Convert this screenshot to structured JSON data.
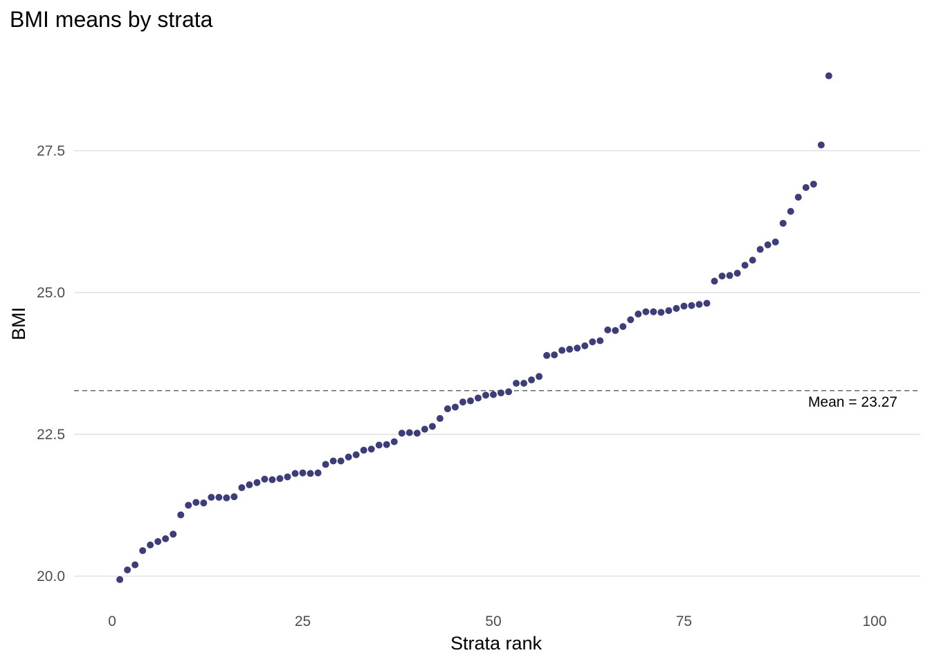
{
  "chart_data": {
    "type": "scatter",
    "title": "BMI means by strata",
    "xlabel": "Strata rank",
    "ylabel": "BMI",
    "xlim": [
      -5,
      106
    ],
    "ylim": [
      19.5,
      29.4
    ],
    "x_ticks": [
      0,
      25,
      50,
      75,
      100
    ],
    "x_tick_labels": [
      "0",
      "25",
      "50",
      "75",
      "100"
    ],
    "y_ticks": [
      20.0,
      22.5,
      25.0,
      27.5
    ],
    "y_tick_labels": [
      "20.0",
      "22.5",
      "25.0",
      "27.5"
    ],
    "grid": true,
    "point_color": "#3d3d79",
    "series": [
      {
        "name": "BMI mean",
        "x": [
          1,
          2,
          3,
          4,
          5,
          6,
          7,
          8,
          9,
          10,
          11,
          12,
          13,
          14,
          15,
          16,
          17,
          18,
          19,
          20,
          21,
          22,
          23,
          24,
          25,
          26,
          27,
          28,
          29,
          30,
          31,
          32,
          33,
          34,
          35,
          36,
          37,
          38,
          39,
          40,
          41,
          42,
          43,
          44,
          45,
          46,
          47,
          48,
          49,
          50,
          51,
          52,
          53,
          54,
          55,
          56,
          57,
          58,
          59,
          60,
          61,
          62,
          63,
          64,
          65,
          66,
          67,
          68,
          69,
          70,
          71,
          72,
          73,
          74,
          75,
          76,
          77,
          78,
          79,
          80,
          81,
          82,
          83,
          84,
          85,
          86,
          87,
          88,
          89,
          90,
          91,
          92,
          93,
          94
        ],
        "y": [
          19.94,
          20.11,
          20.2,
          20.45,
          20.55,
          20.61,
          20.66,
          20.74,
          21.08,
          21.25,
          21.3,
          21.29,
          21.39,
          21.39,
          21.38,
          21.4,
          21.56,
          21.61,
          21.65,
          21.71,
          21.7,
          21.72,
          21.75,
          21.81,
          21.82,
          21.81,
          21.82,
          21.97,
          22.03,
          22.03,
          22.1,
          22.14,
          22.22,
          22.24,
          22.31,
          22.32,
          22.37,
          22.52,
          22.53,
          22.52,
          22.59,
          22.64,
          22.78,
          22.95,
          22.98,
          23.07,
          23.09,
          23.14,
          23.19,
          23.2,
          23.23,
          23.25,
          23.4,
          23.4,
          23.46,
          23.52,
          23.89,
          23.9,
          23.98,
          24.0,
          24.02,
          24.06,
          24.13,
          24.15,
          24.34,
          24.33,
          24.4,
          24.52,
          24.62,
          24.66,
          24.66,
          24.65,
          24.68,
          24.72,
          24.76,
          24.77,
          24.79,
          24.81,
          25.2,
          25.29,
          25.3,
          25.34,
          25.48,
          25.57,
          25.76,
          25.84,
          25.89,
          26.22,
          26.43,
          26.68,
          26.85,
          26.91,
          27.6,
          28.82
        ]
      }
    ],
    "reference_line": {
      "value": 23.27,
      "style": "dashed",
      "color": "#666666"
    },
    "annotations": [
      {
        "text": "Mean = 23.27",
        "x": 103,
        "y": 23.07,
        "anchor": "end"
      }
    ]
  }
}
